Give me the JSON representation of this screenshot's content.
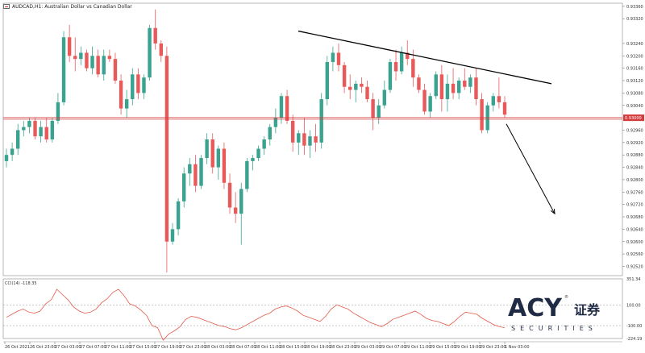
{
  "window": {
    "title": "AUDCAD,H1:  Australian Dollar vs Canadian Dollar",
    "chart_icon": "chart-window-icon"
  },
  "indicator": {
    "label": "CCI(14) -118.35"
  },
  "logo": {
    "brand": "ACY",
    "chinese": "证券",
    "sub": "SECURITIES",
    "mark": "®"
  },
  "colors": {
    "bull": "#3aa38f",
    "bear": "#e85a5a",
    "price_line": "#d43c3c",
    "trend": "#000000",
    "cci": "#e05b4a"
  },
  "chart_data": [
    {
      "type": "candlestick",
      "title": "AUDCAD,H1",
      "price_axis_ticks": [
        "0.93360",
        "0.93320",
        "0.93240",
        "0.93200",
        "0.93160",
        "0.93120",
        "0.93080",
        "0.93040",
        "0.92960",
        "0.92920",
        "0.92880",
        "0.92840",
        "0.92800",
        "0.92760",
        "0.92720",
        "0.92680",
        "0.92640",
        "0.92600",
        "0.92560",
        "0.92520"
      ],
      "current_price_label": "0.93000",
      "ylim": [
        0.9249,
        0.9337
      ],
      "time_labels": [
        "26 Oct 2021",
        "26 Oct 23:00",
        "27 Oct 03:00",
        "27 Oct 07:00",
        "27 Oct 11:00",
        "27 Oct 15:00",
        "27 Oct 19:00",
        "27 Oct 23:00",
        "28 Oct 03:00",
        "28 Oct 07:00",
        "28 Oct 11:00",
        "28 Oct 15:00",
        "28 Oct 19:00",
        "28 Oct 23:00",
        "29 Oct 03:00",
        "29 Oct 07:00",
        "29 Oct 11:00",
        "29 Oct 15:00",
        "29 Oct 19:00",
        "29 Oct 23:00",
        "1 Nov 03:00"
      ],
      "horizontal_line": 0.93,
      "candles": [
        [
          0.9286,
          0.929,
          0.9284,
          0.9288
        ],
        [
          0.9288,
          0.9292,
          0.9286,
          0.929
        ],
        [
          0.929,
          0.9298,
          0.9288,
          0.9296
        ],
        [
          0.9296,
          0.9299,
          0.9294,
          0.9297
        ],
        [
          0.9297,
          0.93,
          0.9295,
          0.9299
        ],
        [
          0.9299,
          0.93,
          0.9293,
          0.9294
        ],
        [
          0.9294,
          0.9299,
          0.9292,
          0.9297
        ],
        [
          0.9297,
          0.93,
          0.9292,
          0.9293
        ],
        [
          0.9293,
          0.93,
          0.9292,
          0.9299
        ],
        [
          0.9299,
          0.9308,
          0.9298,
          0.9305
        ],
        [
          0.9305,
          0.9328,
          0.9304,
          0.9326
        ],
        [
          0.9326,
          0.933,
          0.9318,
          0.932
        ],
        [
          0.932,
          0.9326,
          0.9315,
          0.9319
        ],
        [
          0.9319,
          0.9323,
          0.9317,
          0.9321
        ],
        [
          0.9321,
          0.9322,
          0.9315,
          0.9316
        ],
        [
          0.9316,
          0.9323,
          0.9314,
          0.932
        ],
        [
          0.932,
          0.9322,
          0.9313,
          0.9314
        ],
        [
          0.9314,
          0.9322,
          0.9312,
          0.932
        ],
        [
          0.932,
          0.9322,
          0.9318,
          0.9319
        ],
        [
          0.9319,
          0.9321,
          0.9311,
          0.9312
        ],
        [
          0.9312,
          0.9314,
          0.9301,
          0.9303
        ],
        [
          0.9303,
          0.9309,
          0.93,
          0.9306
        ],
        [
          0.9306,
          0.9316,
          0.9304,
          0.9314
        ],
        [
          0.9314,
          0.9316,
          0.9306,
          0.9308
        ],
        [
          0.9308,
          0.9314,
          0.9306,
          0.9313
        ],
        [
          0.9313,
          0.933,
          0.9312,
          0.9329
        ],
        [
          0.9329,
          0.9335,
          0.9322,
          0.9324
        ],
        [
          0.9324,
          0.9325,
          0.9318,
          0.932
        ],
        [
          0.932,
          0.9323,
          0.925,
          0.926
        ],
        [
          0.926,
          0.9266,
          0.9259,
          0.9264
        ],
        [
          0.9264,
          0.9274,
          0.9262,
          0.9273
        ],
        [
          0.9273,
          0.9284,
          0.9271,
          0.9282
        ],
        [
          0.9282,
          0.9287,
          0.9278,
          0.9285
        ],
        [
          0.9285,
          0.9288,
          0.9276,
          0.9278
        ],
        [
          0.9278,
          0.9288,
          0.9277,
          0.9287
        ],
        [
          0.9287,
          0.9295,
          0.9285,
          0.9293
        ],
        [
          0.9293,
          0.9295,
          0.9282,
          0.9284
        ],
        [
          0.9284,
          0.9291,
          0.928,
          0.929
        ],
        [
          0.929,
          0.9292,
          0.9277,
          0.9279
        ],
        [
          0.9279,
          0.9282,
          0.9269,
          0.9271
        ],
        [
          0.9271,
          0.9276,
          0.9266,
          0.9269
        ],
        [
          0.9269,
          0.9279,
          0.9259,
          0.9277
        ],
        [
          0.9277,
          0.9287,
          0.9276,
          0.9286
        ],
        [
          0.9286,
          0.9288,
          0.9283,
          0.9287
        ],
        [
          0.9287,
          0.9291,
          0.9286,
          0.929
        ],
        [
          0.929,
          0.9294,
          0.9288,
          0.9293
        ],
        [
          0.9293,
          0.9298,
          0.9291,
          0.9297
        ],
        [
          0.9297,
          0.9303,
          0.9295,
          0.93
        ],
        [
          0.93,
          0.9308,
          0.9298,
          0.9307
        ],
        [
          0.9307,
          0.9309,
          0.9298,
          0.9299
        ],
        [
          0.9299,
          0.9301,
          0.9289,
          0.9292
        ],
        [
          0.9292,
          0.9296,
          0.9288,
          0.9295
        ],
        [
          0.9295,
          0.93,
          0.9288,
          0.9291
        ],
        [
          0.9291,
          0.9296,
          0.9287,
          0.9294
        ],
        [
          0.9294,
          0.9298,
          0.9289,
          0.9292
        ],
        [
          0.9292,
          0.9308,
          0.929,
          0.9306
        ],
        [
          0.9306,
          0.932,
          0.9304,
          0.9318
        ],
        [
          0.9318,
          0.9323,
          0.9315,
          0.9321
        ],
        [
          0.9321,
          0.9324,
          0.9315,
          0.9317
        ],
        [
          0.9317,
          0.9318,
          0.9308,
          0.931
        ],
        [
          0.931,
          0.9314,
          0.9306,
          0.9309
        ],
        [
          0.9309,
          0.9312,
          0.9305,
          0.9311
        ],
        [
          0.9311,
          0.9313,
          0.9308,
          0.931
        ],
        [
          0.931,
          0.9312,
          0.9305,
          0.9306
        ],
        [
          0.9306,
          0.9308,
          0.9296,
          0.93
        ],
        [
          0.93,
          0.9306,
          0.9298,
          0.9304
        ],
        [
          0.9304,
          0.9312,
          0.9303,
          0.9309
        ],
        [
          0.9309,
          0.9319,
          0.9308,
          0.9318
        ],
        [
          0.9318,
          0.9322,
          0.9312,
          0.9315
        ],
        [
          0.9315,
          0.9323,
          0.9314,
          0.9321
        ],
        [
          0.9321,
          0.9325,
          0.9317,
          0.9319
        ],
        [
          0.9319,
          0.9322,
          0.931,
          0.9313
        ],
        [
          0.9313,
          0.9314,
          0.9308,
          0.9309
        ],
        [
          0.9309,
          0.9311,
          0.9301,
          0.9302
        ],
        [
          0.9302,
          0.9308,
          0.93,
          0.9307
        ],
        [
          0.9307,
          0.9315,
          0.9306,
          0.9314
        ],
        [
          0.9314,
          0.9317,
          0.9302,
          0.9306
        ],
        [
          0.9306,
          0.9314,
          0.9302,
          0.9311
        ],
        [
          0.9311,
          0.9316,
          0.9306,
          0.9308
        ],
        [
          0.9308,
          0.9313,
          0.9306,
          0.9312
        ],
        [
          0.9312,
          0.9316,
          0.9309,
          0.931
        ],
        [
          0.931,
          0.9314,
          0.9308,
          0.9313
        ],
        [
          0.9313,
          0.9316,
          0.9304,
          0.9306
        ],
        [
          0.9306,
          0.9308,
          0.9295,
          0.9296
        ],
        [
          0.9296,
          0.9305,
          0.9295,
          0.9304
        ],
        [
          0.9304,
          0.9308,
          0.9302,
          0.9307
        ],
        [
          0.9307,
          0.9313,
          0.9303,
          0.9305
        ],
        [
          0.9305,
          0.9307,
          0.93,
          0.9301
        ]
      ],
      "trendlines": [
        {
          "from": {
            "x": 0,
            "price": 0.9328
          },
          "to": {
            "x": 0,
            "price": 0.9311
          },
          "style": "line"
        },
        {
          "from": {
            "x": 0,
            "price": 0.9298
          },
          "to": {
            "x": 0,
            "price": 0.9269
          },
          "style": "arrow"
        }
      ]
    },
    {
      "type": "line",
      "title": "CCI(14) -118.35",
      "axis_ticks": [
        "351.34",
        "100.00",
        "-100.00",
        "-224.19"
      ],
      "levels": [
        100,
        -100
      ],
      "ylim": [
        -224.19,
        351.34
      ],
      "values": [
        -20,
        10,
        40,
        60,
        30,
        20,
        40,
        110,
        150,
        250,
        200,
        150,
        80,
        40,
        20,
        30,
        60,
        120,
        160,
        220,
        250,
        190,
        110,
        90,
        50,
        0,
        -100,
        -120,
        -240,
        -180,
        -150,
        -110,
        -40,
        -10,
        -20,
        -40,
        -60,
        -80,
        -100,
        -110,
        -130,
        -140,
        -120,
        -90,
        -60,
        -30,
        0,
        20,
        60,
        80,
        90,
        70,
        40,
        0,
        -20,
        -40,
        -60,
        -10,
        60,
        100,
        80,
        60,
        20,
        -10,
        -40,
        -70,
        -90,
        -110,
        -80,
        -40,
        -20,
        0,
        20,
        40,
        10,
        -30,
        -50,
        -60,
        -80,
        -100,
        -60,
        -10,
        30,
        20,
        10,
        -30,
        -60,
        -90,
        -110,
        -120
      ]
    }
  ]
}
